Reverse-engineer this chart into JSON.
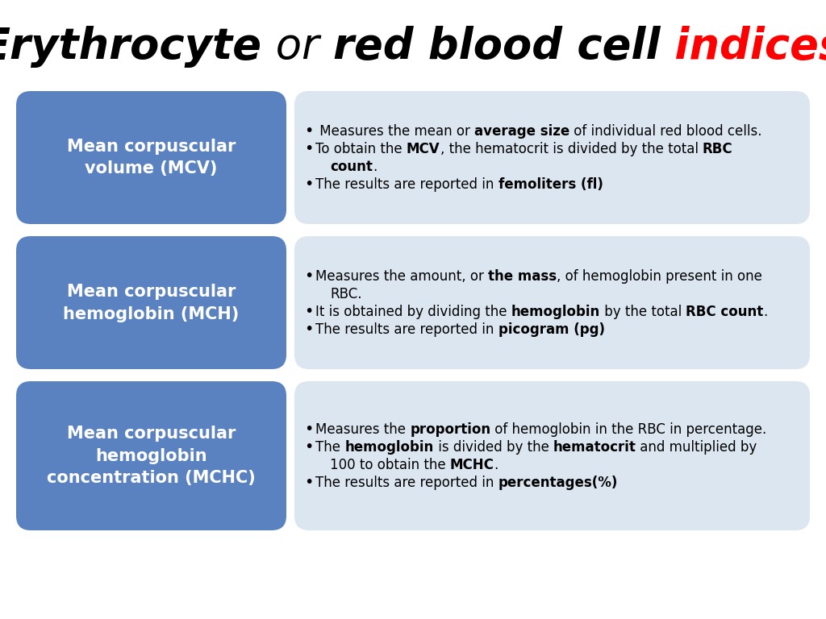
{
  "bg_color": "#ffffff",
  "blue_box_color": "#5b82c0",
  "light_box_color": "#dce6f1",
  "title_fontsize": 38,
  "label_fontsize": 15,
  "bullet_fontsize": 12,
  "rows": [
    {
      "label": "Mean corpuscular\nvolume (MCV)",
      "bullets": [
        {
          "segments": [
            {
              "text": " Measures the mean or ",
              "bold": false
            },
            {
              "text": "average size",
              "bold": true
            },
            {
              "text": " of individual red blood cells.",
              "bold": false
            }
          ]
        },
        {
          "segments": [
            {
              "text": "To obtain the ",
              "bold": false
            },
            {
              "text": "MCV",
              "bold": true
            },
            {
              "text": ", the hematocrit is divided by the total ",
              "bold": false
            },
            {
              "text": "RBC",
              "bold": true
            }
          ]
        },
        {
          "segments": [
            {
              "text": "count",
              "bold": true
            },
            {
              "text": ".",
              "bold": false
            }
          ],
          "indent": true
        },
        {
          "segments": [
            {
              "text": "The results are reported in ",
              "bold": false
            },
            {
              "text": "femoliters (fl)",
              "bold": true
            }
          ]
        }
      ]
    },
    {
      "label": "Mean corpuscular\nhemoglobin (MCH)",
      "bullets": [
        {
          "segments": [
            {
              "text": "Measures the amount, or ",
              "bold": false
            },
            {
              "text": "the mass",
              "bold": true
            },
            {
              "text": ", of hemoglobin present in one",
              "bold": false
            }
          ]
        },
        {
          "segments": [
            {
              "text": "RBC.",
              "bold": false
            }
          ],
          "indent": true
        },
        {
          "segments": [
            {
              "text": "It is obtained by dividing the ",
              "bold": false
            },
            {
              "text": "hemoglobin",
              "bold": true
            },
            {
              "text": " by the total ",
              "bold": false
            },
            {
              "text": "RBC count",
              "bold": true
            },
            {
              "text": ".",
              "bold": false
            }
          ]
        },
        {
          "segments": [
            {
              "text": "The results are reported in ",
              "bold": false
            },
            {
              "text": "picogram (pg)",
              "bold": true
            }
          ]
        }
      ]
    },
    {
      "label": "Mean corpuscular\nhemoglobin\nconcentration (MCHC)",
      "bullets": [
        {
          "segments": [
            {
              "text": "Measures the ",
              "bold": false
            },
            {
              "text": "proportion",
              "bold": true
            },
            {
              "text": " of hemoglobin in the RBC in percentage.",
              "bold": false
            }
          ]
        },
        {
          "segments": [
            {
              "text": "The ",
              "bold": false
            },
            {
              "text": "hemoglobin",
              "bold": true
            },
            {
              "text": " is divided by the ",
              "bold": false
            },
            {
              "text": "hematocrit",
              "bold": true
            },
            {
              "text": " and multiplied by",
              "bold": false
            }
          ]
        },
        {
          "segments": [
            {
              "text": "100 to obtain the ",
              "bold": false
            },
            {
              "text": "MCHC",
              "bold": true
            },
            {
              "text": ".",
              "bold": false
            }
          ],
          "indent": true
        },
        {
          "segments": [
            {
              "text": "The results are reported in ",
              "bold": false
            },
            {
              "text": "percentages(%)",
              "bold": true
            }
          ]
        }
      ]
    }
  ]
}
